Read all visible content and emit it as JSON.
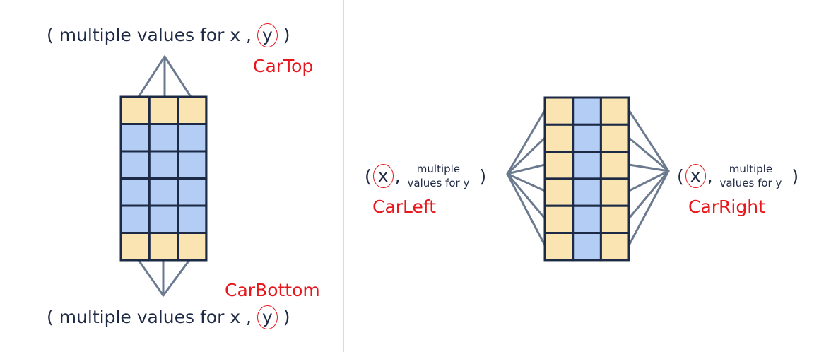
{
  "top": {
    "label_prefix": "( multiple values for x ,",
    "label_y": "y",
    "label_suffix": ")",
    "name": "CarTop"
  },
  "bottom": {
    "label_prefix": "( multiple values for x ,",
    "label_y": "y",
    "label_suffix": ")",
    "name": "CarBottom"
  },
  "left": {
    "open": "(",
    "x": "x",
    "comma": ",",
    "multi_line1": "multiple",
    "multi_line2": "values for y",
    "close": ")",
    "name": "CarLeft"
  },
  "right": {
    "open": "(",
    "x": "x",
    "comma": ",",
    "multi_line1": "multiple",
    "multi_line2": "values for y",
    "close": ")",
    "name": "CarRight"
  },
  "colors": {
    "yellow": "#f9e4b2",
    "blue": "#b3cdf5",
    "grid": "#1c2a45",
    "connector": "#6b7a8f",
    "divider": "#d9d9d9",
    "red": "#e8161b"
  },
  "grid_left": {
    "rows": 6,
    "cols": 3,
    "cells": [
      [
        "yellow",
        "yellow",
        "yellow"
      ],
      [
        "blue",
        "blue",
        "blue"
      ],
      [
        "blue",
        "blue",
        "blue"
      ],
      [
        "blue",
        "blue",
        "blue"
      ],
      [
        "blue",
        "blue",
        "blue"
      ],
      [
        "yellow",
        "yellow",
        "yellow"
      ]
    ]
  },
  "grid_right": {
    "rows": 6,
    "cols": 3,
    "cells": [
      [
        "yellow",
        "blue",
        "yellow"
      ],
      [
        "yellow",
        "blue",
        "yellow"
      ],
      [
        "yellow",
        "blue",
        "yellow"
      ],
      [
        "yellow",
        "blue",
        "yellow"
      ],
      [
        "yellow",
        "blue",
        "yellow"
      ],
      [
        "yellow",
        "blue",
        "yellow"
      ]
    ]
  }
}
